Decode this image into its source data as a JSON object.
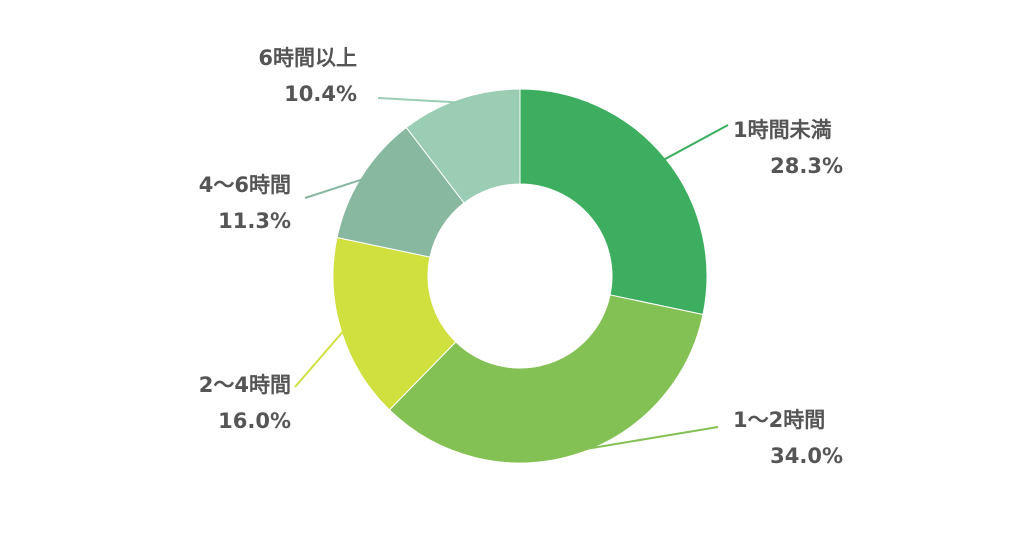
{
  "chart_data": {
    "type": "pie",
    "variant": "donut",
    "start": "top",
    "direction": "clockwise",
    "slices": [
      {
        "label": "1時間未満",
        "value": 28.3,
        "value_label": "28.3%",
        "color": "#3dae5f"
      },
      {
        "label": "1〜2時間",
        "value": 34.0,
        "value_label": "34.0%",
        "color": "#84c155"
      },
      {
        "label": "2〜4時間",
        "value": 16.0,
        "value_label": "16.0%",
        "color": "#cfe03f"
      },
      {
        "label": "4〜6時間",
        "value": 11.3,
        "value_label": "11.3%",
        "color": "#88b8a0"
      },
      {
        "label": "6時間以上",
        "value": 10.4,
        "value_label": "10.4%",
        "color": "#9acdb3"
      }
    ]
  }
}
